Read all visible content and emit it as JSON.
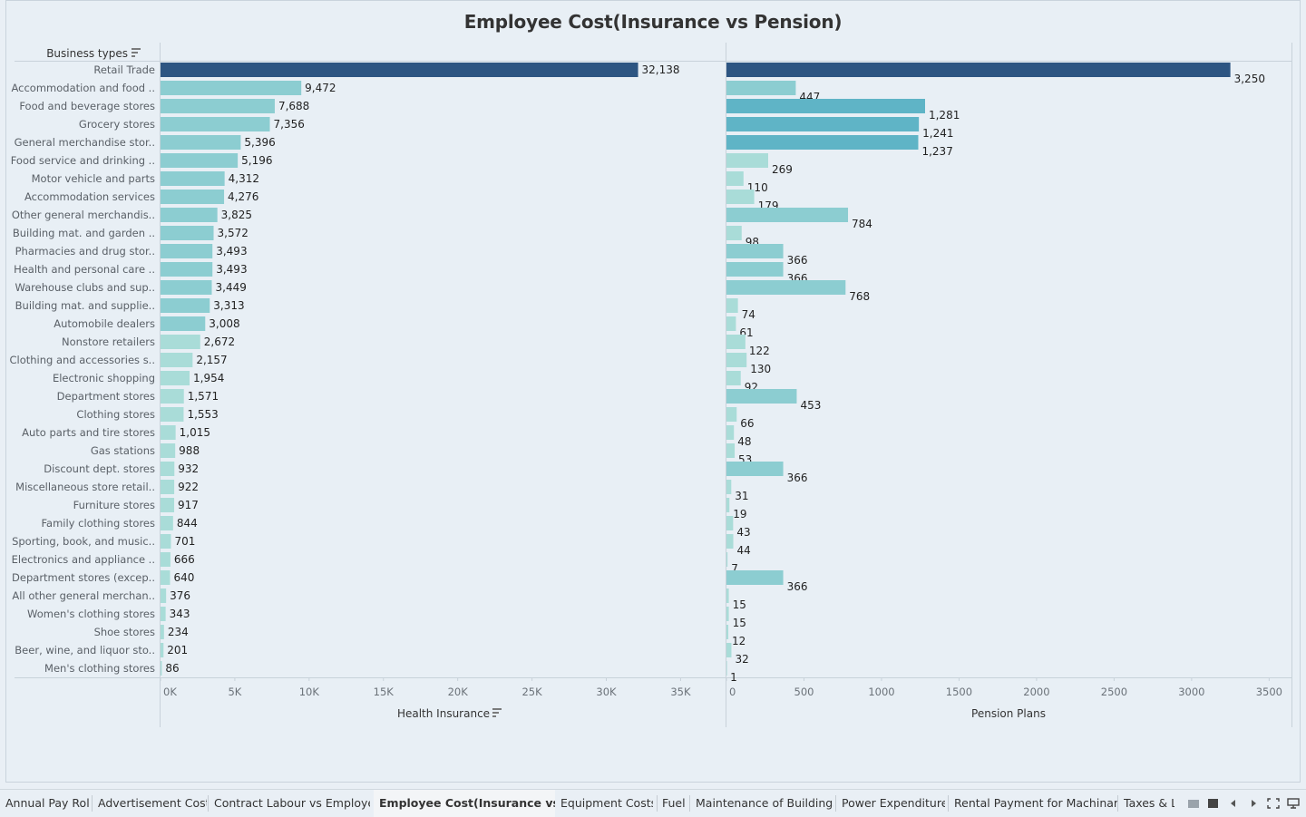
{
  "title": "Employee Cost(Insurance vs Pension)",
  "colors": {
    "dark": "#2d5582",
    "mid": "#5fb4c6",
    "light": "#8ccdd1",
    "lighter": "#a9dcd8",
    "grid": "#c8d2da",
    "axis_text": "#6b7279",
    "label_text": "#5a6067",
    "value_text": "#222"
  },
  "chart_data": [
    {
      "type": "bar",
      "orientation": "horizontal",
      "row_header": "Business types",
      "xlabel": "Health Insurance",
      "xlim": [
        0,
        36500
      ],
      "xticks": [
        0,
        5000,
        10000,
        15000,
        20000,
        25000,
        30000,
        35000
      ],
      "xtick_labels": [
        "0K",
        "5K",
        "10K",
        "15K",
        "20K",
        "25K",
        "30K",
        "35K"
      ],
      "categories": [
        "Retail Trade",
        "Accommodation and food ..",
        "Food and beverage stores",
        "Grocery stores",
        "General merchandise stor..",
        "Food service and drinking ..",
        "Motor vehicle and parts",
        "Accommodation services",
        "Other general merchandis..",
        "Building mat. and garden ..",
        "Pharmacies and drug stor..",
        "Health and personal care ..",
        "Warehouse clubs and sup..",
        "Building mat. and supplie..",
        "Automobile dealers",
        "Nonstore retailers",
        "Clothing and accessories s..",
        "Electronic shopping",
        "Department stores",
        "Clothing stores",
        "Auto parts and tire stores",
        "Gas stations",
        "Discount dept. stores",
        "Miscellaneous store retail..",
        "Furniture stores",
        "Family clothing stores",
        "Sporting, book, and music..",
        "Electronics and appliance ..",
        "Department stores (excep..",
        "All other general merchan..",
        "Women's clothing stores",
        "Shoe stores",
        "Beer, wine, and liquor sto..",
        "Men's clothing stores"
      ],
      "values": [
        32138,
        9472,
        7688,
        7356,
        5396,
        5196,
        4312,
        4276,
        3825,
        3572,
        3493,
        3493,
        3449,
        3313,
        3008,
        2672,
        2157,
        1954,
        1571,
        1553,
        1015,
        988,
        932,
        922,
        917,
        844,
        701,
        666,
        640,
        376,
        343,
        234,
        201,
        86
      ],
      "value_labels": [
        "32,138",
        "9,472",
        "7,688",
        "7,356",
        "5,396",
        "5,196",
        "4,312",
        "4,276",
        "3,825",
        "3,572",
        "3,493",
        "3,493",
        "3,449",
        "3,313",
        "3,008",
        "2,672",
        "2,157",
        "1,954",
        "1,571",
        "1,553",
        "1,015",
        "988",
        "932",
        "922",
        "917",
        "844",
        "701",
        "666",
        "640",
        "376",
        "343",
        "234",
        "201",
        "86"
      ]
    },
    {
      "type": "bar",
      "orientation": "horizontal",
      "xlabel": "Pension Plans",
      "xlim": [
        0,
        3650
      ],
      "xticks": [
        0,
        500,
        1000,
        1500,
        2000,
        2500,
        3000,
        3500
      ],
      "xtick_labels": [
        "0",
        "500",
        "1000",
        "1500",
        "2000",
        "2500",
        "3000",
        "3500"
      ],
      "values": [
        3250,
        447,
        1281,
        1241,
        1237,
        269,
        110,
        179,
        784,
        98,
        366,
        366,
        768,
        74,
        61,
        122,
        130,
        92,
        453,
        66,
        48,
        53,
        366,
        31,
        19,
        43,
        44,
        7,
        366,
        15,
        15,
        12,
        32,
        1
      ],
      "value_labels": [
        "3,250",
        "447",
        "1,281",
        "1,241",
        "1,237",
        "269",
        "110",
        "179",
        "784",
        "98",
        "366",
        "366",
        "768",
        "74",
        "61",
        "122",
        "130",
        "92",
        "453",
        "66",
        "48",
        "53",
        "366",
        "31",
        "19",
        "43",
        "44",
        "7",
        "366",
        "15",
        "15",
        "12",
        "32",
        "1"
      ]
    }
  ],
  "tabs": [
    {
      "label": "Annual Pay Roll",
      "active": false
    },
    {
      "label": "Advertisement Cost",
      "active": false
    },
    {
      "label": "Contract Labour vs Employee",
      "active": false
    },
    {
      "label": "Employee Cost(Insurance vs p...",
      "active": true
    },
    {
      "label": "Equipment Costs",
      "active": false
    },
    {
      "label": "Fuel",
      "active": false
    },
    {
      "label": "Maintenance of Buildings",
      "active": false
    },
    {
      "label": "Power Expenditure",
      "active": false
    },
    {
      "label": "Rental Payment for Machinary",
      "active": false
    },
    {
      "label": "Taxes & Li",
      "active": false
    }
  ]
}
